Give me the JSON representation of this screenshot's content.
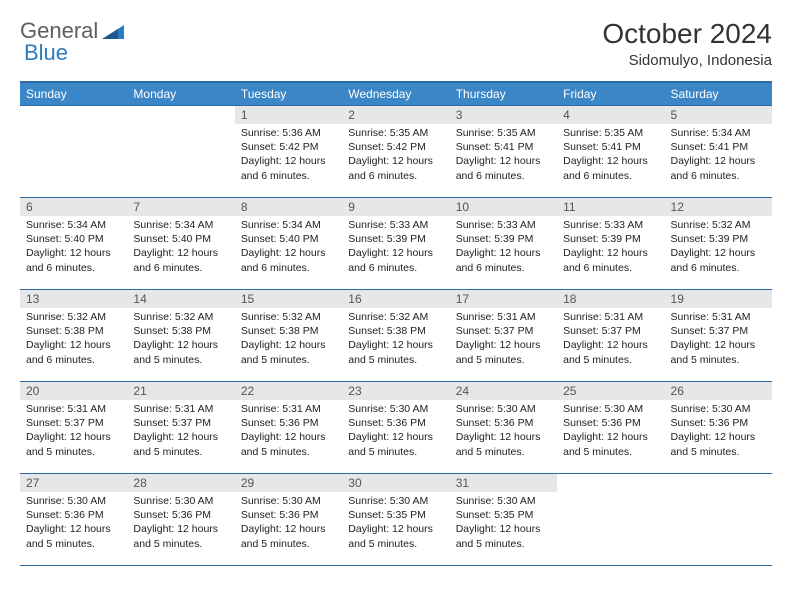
{
  "brand": {
    "part1": "General",
    "part2": "Blue"
  },
  "colors": {
    "header_bg": "#3b86c6",
    "header_border": "#2d6aa3",
    "daynum_bg": "#e6e7e8",
    "brand_blue": "#2d7bc0",
    "text": "#222222"
  },
  "title": "October 2024",
  "location": "Sidomulyo, Indonesia",
  "weekdays": [
    "Sunday",
    "Monday",
    "Tuesday",
    "Wednesday",
    "Thursday",
    "Friday",
    "Saturday"
  ],
  "weeks": [
    [
      null,
      null,
      {
        "d": "1",
        "sr": "5:36 AM",
        "ss": "5:42 PM",
        "dl": "12 hours and 6 minutes."
      },
      {
        "d": "2",
        "sr": "5:35 AM",
        "ss": "5:42 PM",
        "dl": "12 hours and 6 minutes."
      },
      {
        "d": "3",
        "sr": "5:35 AM",
        "ss": "5:41 PM",
        "dl": "12 hours and 6 minutes."
      },
      {
        "d": "4",
        "sr": "5:35 AM",
        "ss": "5:41 PM",
        "dl": "12 hours and 6 minutes."
      },
      {
        "d": "5",
        "sr": "5:34 AM",
        "ss": "5:41 PM",
        "dl": "12 hours and 6 minutes."
      }
    ],
    [
      {
        "d": "6",
        "sr": "5:34 AM",
        "ss": "5:40 PM",
        "dl": "12 hours and 6 minutes."
      },
      {
        "d": "7",
        "sr": "5:34 AM",
        "ss": "5:40 PM",
        "dl": "12 hours and 6 minutes."
      },
      {
        "d": "8",
        "sr": "5:34 AM",
        "ss": "5:40 PM",
        "dl": "12 hours and 6 minutes."
      },
      {
        "d": "9",
        "sr": "5:33 AM",
        "ss": "5:39 PM",
        "dl": "12 hours and 6 minutes."
      },
      {
        "d": "10",
        "sr": "5:33 AM",
        "ss": "5:39 PM",
        "dl": "12 hours and 6 minutes."
      },
      {
        "d": "11",
        "sr": "5:33 AM",
        "ss": "5:39 PM",
        "dl": "12 hours and 6 minutes."
      },
      {
        "d": "12",
        "sr": "5:32 AM",
        "ss": "5:39 PM",
        "dl": "12 hours and 6 minutes."
      }
    ],
    [
      {
        "d": "13",
        "sr": "5:32 AM",
        "ss": "5:38 PM",
        "dl": "12 hours and 6 minutes."
      },
      {
        "d": "14",
        "sr": "5:32 AM",
        "ss": "5:38 PM",
        "dl": "12 hours and 5 minutes."
      },
      {
        "d": "15",
        "sr": "5:32 AM",
        "ss": "5:38 PM",
        "dl": "12 hours and 5 minutes."
      },
      {
        "d": "16",
        "sr": "5:32 AM",
        "ss": "5:38 PM",
        "dl": "12 hours and 5 minutes."
      },
      {
        "d": "17",
        "sr": "5:31 AM",
        "ss": "5:37 PM",
        "dl": "12 hours and 5 minutes."
      },
      {
        "d": "18",
        "sr": "5:31 AM",
        "ss": "5:37 PM",
        "dl": "12 hours and 5 minutes."
      },
      {
        "d": "19",
        "sr": "5:31 AM",
        "ss": "5:37 PM",
        "dl": "12 hours and 5 minutes."
      }
    ],
    [
      {
        "d": "20",
        "sr": "5:31 AM",
        "ss": "5:37 PM",
        "dl": "12 hours and 5 minutes."
      },
      {
        "d": "21",
        "sr": "5:31 AM",
        "ss": "5:37 PM",
        "dl": "12 hours and 5 minutes."
      },
      {
        "d": "22",
        "sr": "5:31 AM",
        "ss": "5:36 PM",
        "dl": "12 hours and 5 minutes."
      },
      {
        "d": "23",
        "sr": "5:30 AM",
        "ss": "5:36 PM",
        "dl": "12 hours and 5 minutes."
      },
      {
        "d": "24",
        "sr": "5:30 AM",
        "ss": "5:36 PM",
        "dl": "12 hours and 5 minutes."
      },
      {
        "d": "25",
        "sr": "5:30 AM",
        "ss": "5:36 PM",
        "dl": "12 hours and 5 minutes."
      },
      {
        "d": "26",
        "sr": "5:30 AM",
        "ss": "5:36 PM",
        "dl": "12 hours and 5 minutes."
      }
    ],
    [
      {
        "d": "27",
        "sr": "5:30 AM",
        "ss": "5:36 PM",
        "dl": "12 hours and 5 minutes."
      },
      {
        "d": "28",
        "sr": "5:30 AM",
        "ss": "5:36 PM",
        "dl": "12 hours and 5 minutes."
      },
      {
        "d": "29",
        "sr": "5:30 AM",
        "ss": "5:36 PM",
        "dl": "12 hours and 5 minutes."
      },
      {
        "d": "30",
        "sr": "5:30 AM",
        "ss": "5:35 PM",
        "dl": "12 hours and 5 minutes."
      },
      {
        "d": "31",
        "sr": "5:30 AM",
        "ss": "5:35 PM",
        "dl": "12 hours and 5 minutes."
      },
      null,
      null
    ]
  ],
  "labels": {
    "sunrise": "Sunrise: ",
    "sunset": "Sunset: ",
    "daylight": "Daylight: "
  }
}
